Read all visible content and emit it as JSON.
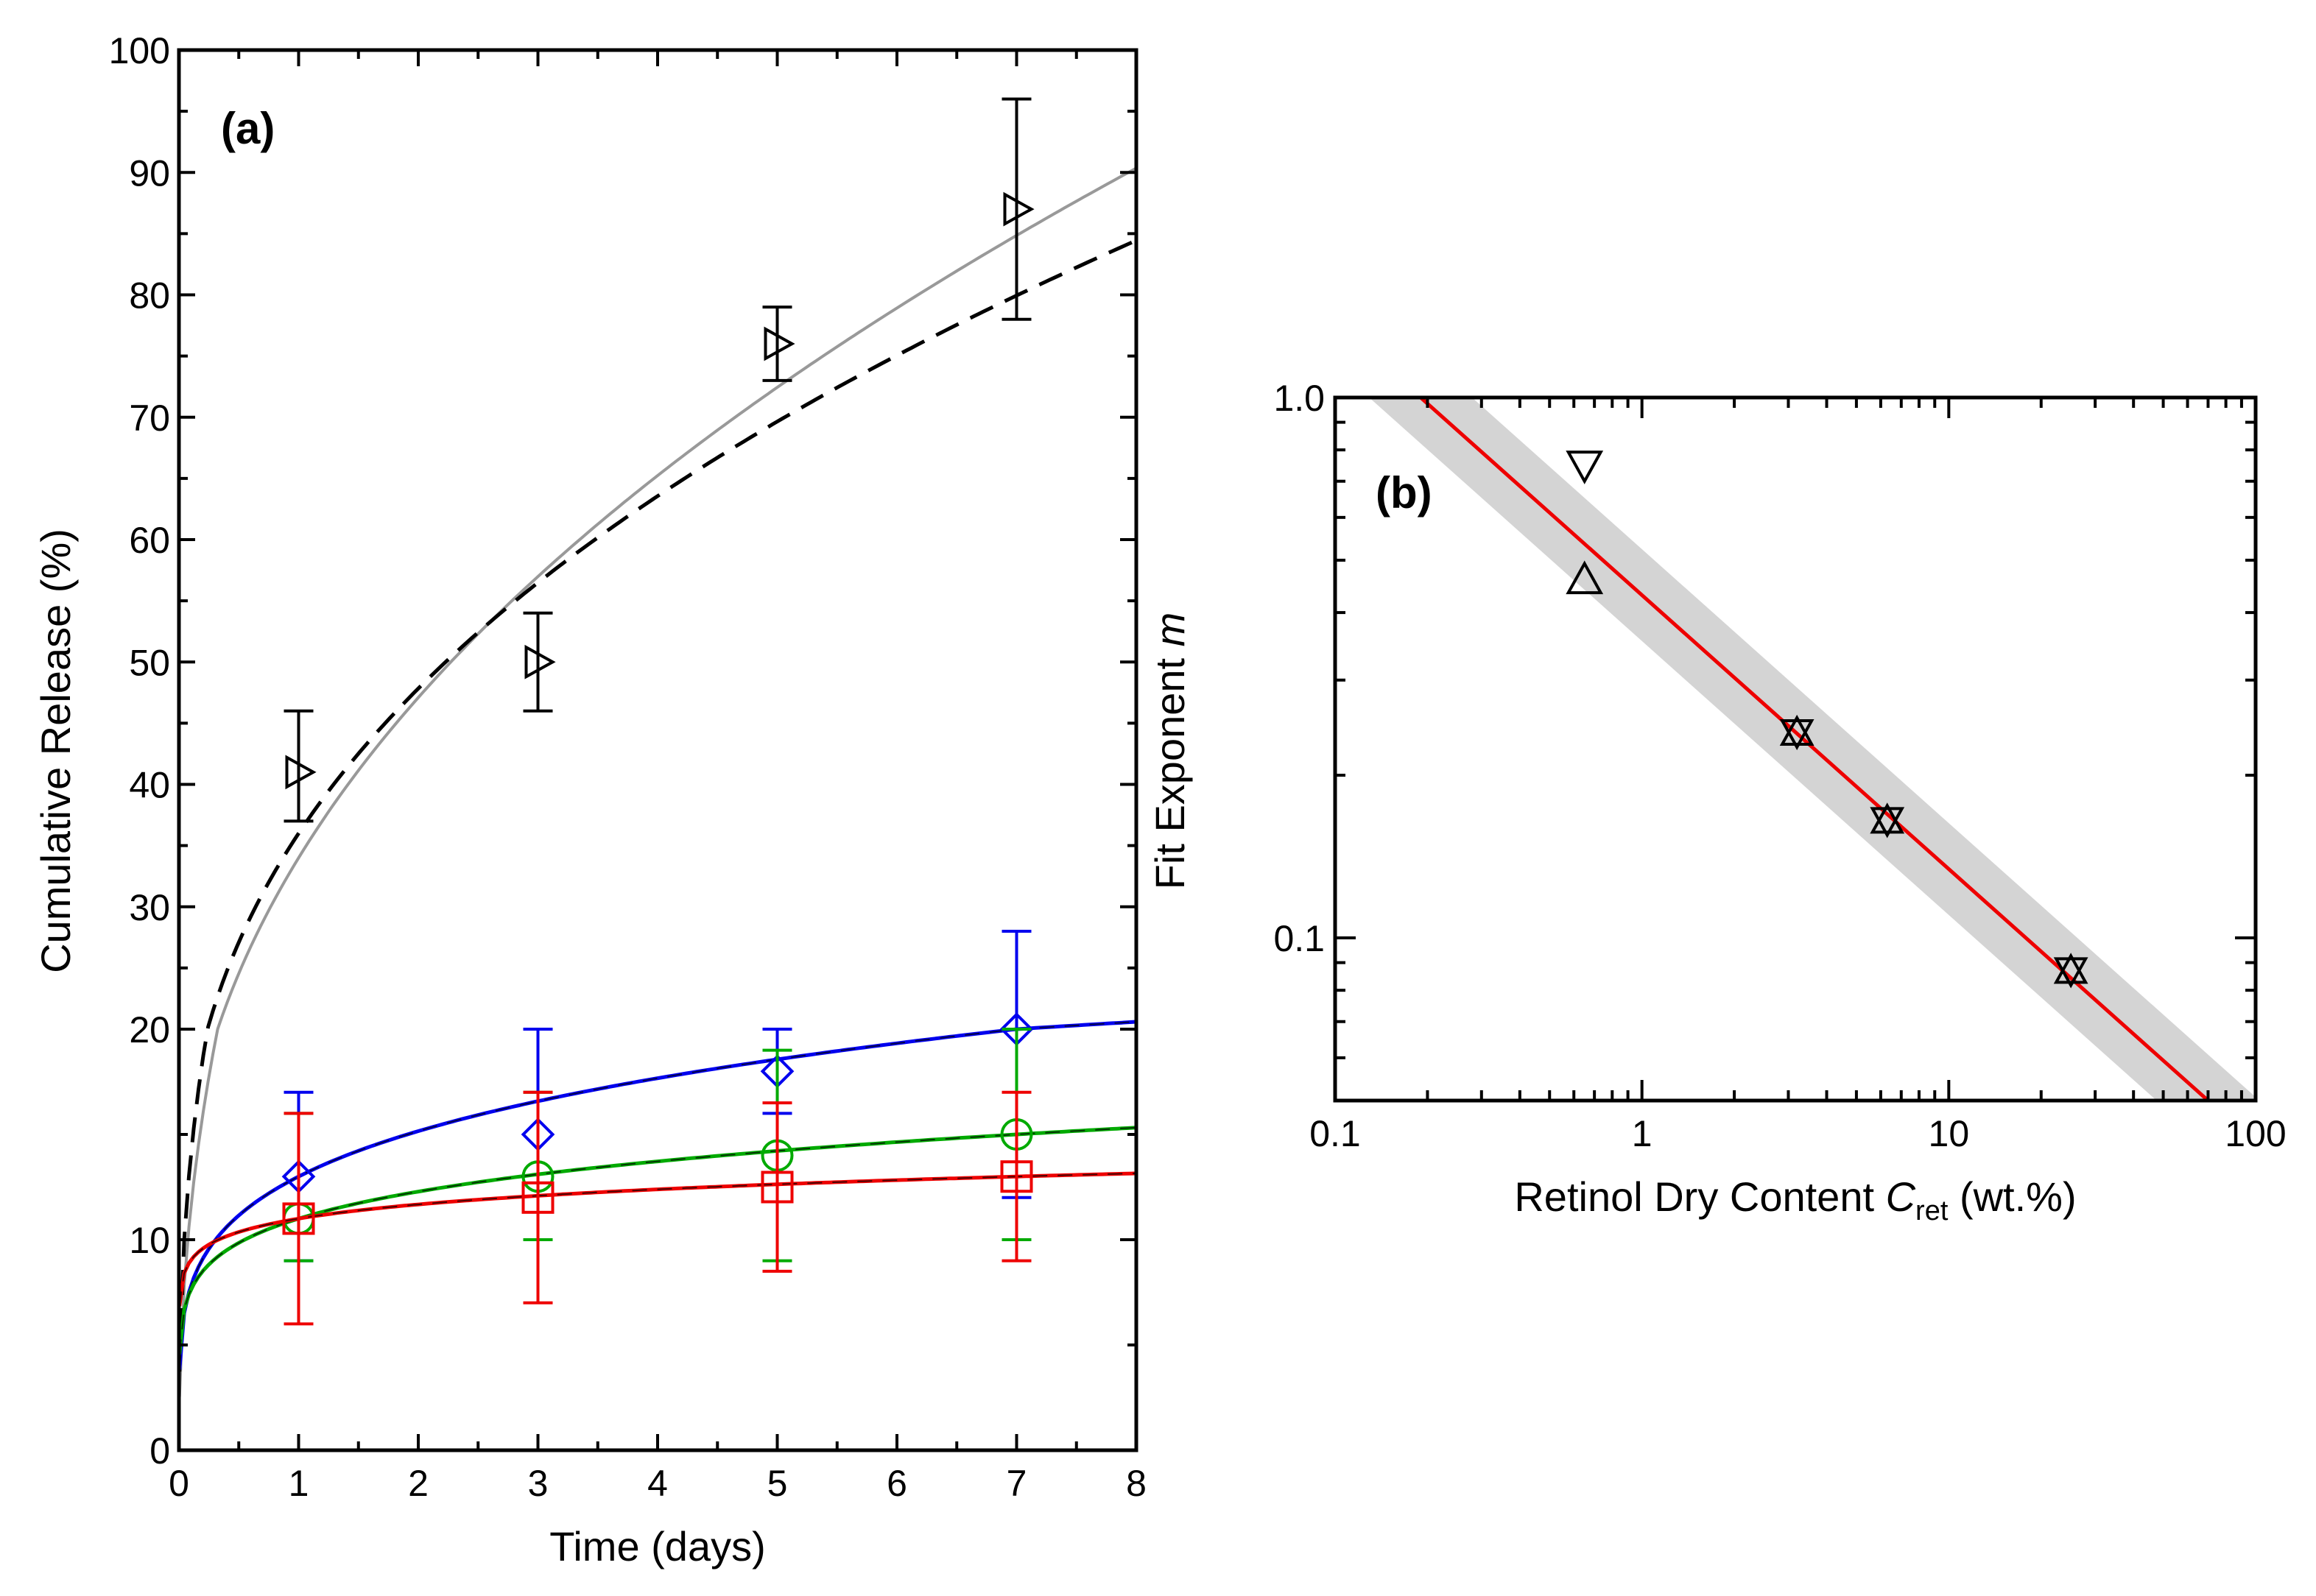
{
  "colors": {
    "black": "#000000",
    "gray": "#999999",
    "blue": "#0000ee",
    "green": "#00aa00",
    "red": "#ee0000",
    "band": "#cccccc"
  },
  "chart_data": [
    {
      "type": "scatter",
      "panel": "(a)",
      "xlabel": "Time (days)",
      "ylabel": "Cumulative Release (%)",
      "xlim": [
        0,
        8
      ],
      "ylim": [
        0,
        100
      ],
      "y_scale": "piecewise-linear (0–20 and 20–100 regions)",
      "xticks": [
        "0",
        "1",
        "2",
        "3",
        "4",
        "5",
        "6",
        "7",
        "8"
      ],
      "yticks": [
        "0",
        "10",
        "20",
        "30",
        "40",
        "50",
        "60",
        "70",
        "80",
        "90",
        "100"
      ],
      "grid": false,
      "series": [
        {
          "marker": "triangle-right",
          "color": "#000000",
          "x": [
            1,
            3,
            5,
            7
          ],
          "y": [
            41,
            50,
            76,
            87
          ],
          "yerr_low": [
            37,
            46,
            73,
            78
          ],
          "yerr_high": [
            46,
            54,
            79,
            96
          ],
          "fit_solid_color": "#999999",
          "fit_dashed_color": "#000000"
        },
        {
          "marker": "diamond",
          "color": "#0000ee",
          "x": [
            1,
            3,
            5,
            7
          ],
          "y": [
            13,
            15,
            18,
            20
          ],
          "yerr_low": [
            9,
            10,
            16,
            12
          ],
          "yerr_high": [
            17,
            20,
            20,
            28
          ]
        },
        {
          "marker": "circle",
          "color": "#00aa00",
          "x": [
            1,
            3,
            5,
            7
          ],
          "y": [
            11,
            13,
            14,
            15
          ],
          "yerr_low": [
            9,
            10,
            9,
            10
          ],
          "yerr_high": [
            16,
            17,
            19,
            20
          ]
        },
        {
          "marker": "square",
          "color": "#ee0000",
          "x": [
            1,
            3,
            5,
            7
          ],
          "y": [
            11,
            12,
            12.5,
            13
          ],
          "yerr_low": [
            6,
            7,
            8.5,
            9
          ],
          "yerr_high": [
            16,
            17,
            16.5,
            17
          ]
        }
      ]
    },
    {
      "type": "scatter",
      "panel": "(b)",
      "xlabel": "Retinol Dry Content",
      "xlabel_symbol": "C",
      "xlabel_subscript": "ret",
      "xlabel_unit": "(wt.%)",
      "ylabel": "Fit Exponent",
      "ylabel_symbol": "m",
      "x_scale": "log",
      "y_scale": "log",
      "xlim": [
        0.1,
        100
      ],
      "ylim": [
        0.05,
        1.0
      ],
      "xticks": [
        "0.1",
        "1",
        "10",
        "100"
      ],
      "yticks": [
        "0.1",
        "1.0"
      ],
      "grid": false,
      "points": [
        {
          "marker": "triangle-down",
          "x": 0.65,
          "y": 0.75
        },
        {
          "marker": "triangle-up",
          "x": 0.65,
          "y": 0.46
        },
        {
          "marker": "hourglass",
          "x": 3.2,
          "y": 0.24
        },
        {
          "marker": "hourglass",
          "x": 6.3,
          "y": 0.165
        },
        {
          "marker": "hourglass",
          "x": 25,
          "y": 0.087
        }
      ],
      "fit_line": {
        "color": "#ee0000",
        "x": [
          0.19,
          70
        ],
        "y": [
          1.0,
          0.05
        ]
      },
      "confidence_band_color": "#cccccc"
    }
  ]
}
